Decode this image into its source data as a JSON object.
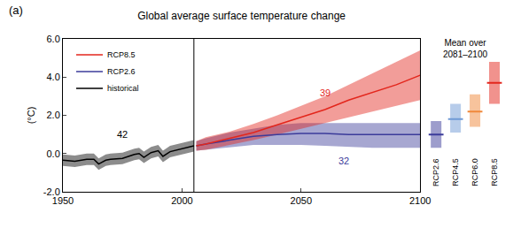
{
  "chart_data": {
    "type": "line",
    "panel_label": "(a)",
    "title": "Global average surface temperature change",
    "y_label": "(°C)",
    "xlim": [
      1950,
      2100
    ],
    "xticks": [
      1950,
      2000,
      2050,
      2100
    ],
    "ylim": [
      -2,
      6
    ],
    "yticks": [
      {
        "value": -2,
        "label": "-2.0"
      },
      {
        "value": 0,
        "label": "0.0"
      },
      {
        "value": 2,
        "label": "2.0"
      },
      {
        "value": 4,
        "label": "4.0"
      },
      {
        "value": 6,
        "label": "6.0"
      }
    ],
    "grid": false,
    "legend": "upper left",
    "vline": 2005,
    "series": [
      {
        "name": "historical",
        "color": "#000000",
        "x": [
          1950,
          1955,
          1960,
          1963,
          1965,
          1968,
          1970,
          1975,
          1980,
          1982,
          1984,
          1987,
          1990,
          1992,
          1995,
          2000,
          2005
        ],
        "values": [
          -0.35,
          -0.4,
          -0.3,
          -0.3,
          -0.55,
          -0.35,
          -0.3,
          -0.25,
          -0.05,
          0.0,
          -0.2,
          0.05,
          0.15,
          -0.15,
          0.1,
          0.25,
          0.4
        ],
        "lower": [
          -0.65,
          -0.7,
          -0.6,
          -0.6,
          -0.85,
          -0.65,
          -0.6,
          -0.55,
          -0.35,
          -0.3,
          -0.5,
          -0.25,
          -0.15,
          -0.45,
          -0.2,
          -0.05,
          0.1
        ],
        "upper": [
          -0.05,
          -0.1,
          0.0,
          0.0,
          -0.25,
          -0.05,
          0.0,
          0.05,
          0.25,
          0.3,
          0.1,
          0.35,
          0.45,
          0.15,
          0.4,
          0.55,
          0.7
        ]
      },
      {
        "name": "RCP2.6",
        "color": "#3b3b9a",
        "x": [
          2006,
          2010,
          2020,
          2030,
          2040,
          2050,
          2060,
          2070,
          2080,
          2090,
          2100
        ],
        "values": [
          0.4,
          0.5,
          0.7,
          0.9,
          1.0,
          1.05,
          1.05,
          1.0,
          1.0,
          1.0,
          1.0
        ],
        "lower": [
          0.15,
          0.2,
          0.35,
          0.45,
          0.45,
          0.45,
          0.4,
          0.35,
          0.3,
          0.3,
          0.3
        ],
        "upper": [
          0.65,
          0.8,
          1.1,
          1.3,
          1.5,
          1.6,
          1.6,
          1.6,
          1.6,
          1.6,
          1.6
        ]
      },
      {
        "name": "RCP8.5",
        "color": "#e3261c",
        "x": [
          2006,
          2010,
          2020,
          2030,
          2040,
          2050,
          2060,
          2070,
          2080,
          2090,
          2100
        ],
        "values": [
          0.4,
          0.5,
          0.8,
          1.1,
          1.5,
          1.9,
          2.3,
          2.8,
          3.2,
          3.6,
          4.1
        ],
        "lower": [
          0.15,
          0.2,
          0.45,
          0.7,
          1.0,
          1.3,
          1.6,
          1.9,
          2.2,
          2.5,
          2.8
        ],
        "upper": [
          0.65,
          0.85,
          1.15,
          1.55,
          2.0,
          2.5,
          3.0,
          3.6,
          4.2,
          4.8,
          5.4
        ]
      }
    ],
    "annotations": [
      {
        "text": "42",
        "x": 1975,
        "y": 1.0,
        "color": "#000000"
      },
      {
        "text": "39",
        "x": 2060,
        "y": 3.2,
        "color": "#e3261c"
      },
      {
        "text": "32",
        "x": 2068,
        "y": -0.4,
        "color": "#3b3b9a"
      }
    ],
    "inset": {
      "title": [
        "Mean over",
        "2081–2100"
      ],
      "categories": [
        "RCP2.6",
        "RCP4.5",
        "RCP6.0",
        "RCP8.5"
      ],
      "values": [
        1.0,
        1.8,
        2.2,
        3.7
      ],
      "lower": [
        0.3,
        1.1,
        1.4,
        2.6
      ],
      "upper": [
        1.7,
        2.6,
        3.1,
        4.8
      ],
      "colors": [
        "#3b3b9a",
        "#6f9ad6",
        "#f0883a",
        "#e3261c"
      ]
    }
  }
}
